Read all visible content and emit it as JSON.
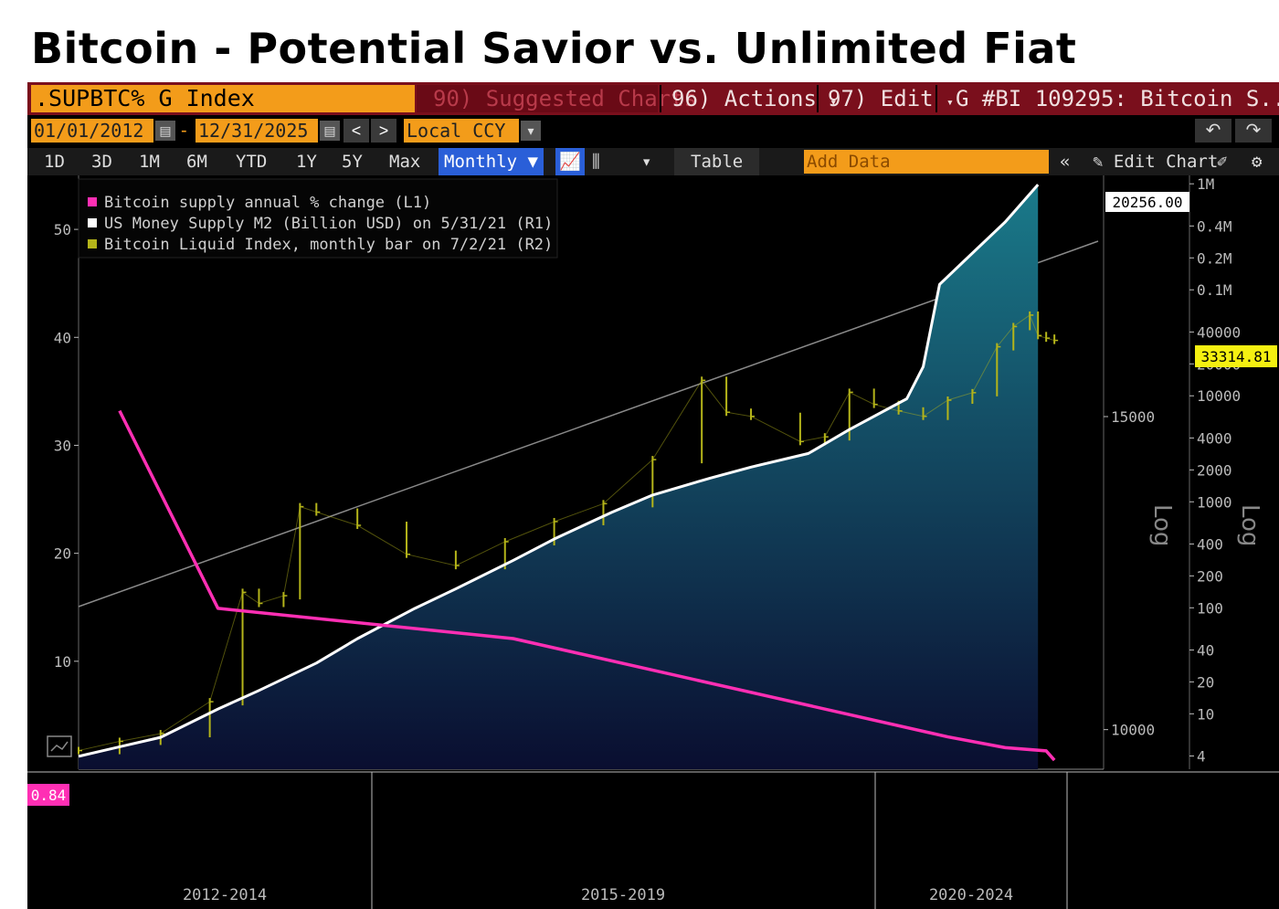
{
  "page": {
    "title": "Bitcoin - Potential Savior vs. Unlimited Fiat"
  },
  "toolbar": {
    "ticker": ".SUPBTC% G Index",
    "suggested": "90) Suggested Charts",
    "actions": "96) Actions",
    "edit": "97) Edit",
    "chart_id": "G #BI 109295: Bitcoin S...",
    "start_date": "01/01/2012",
    "end_date": "12/31/2025",
    "date_sep": "-",
    "prev": "<",
    "next": ">",
    "currency": "Local CCY",
    "undo_icon": "↶",
    "redo_icon": "↷",
    "periods": [
      "1D",
      "3D",
      "1M",
      "6M",
      "YTD",
      "1Y",
      "5Y",
      "Max"
    ],
    "frequency": "Monthly ▼",
    "table": "Table",
    "add_data": "Add Data",
    "collapse": "«",
    "edit_chart": "Edit Chart"
  },
  "colors": {
    "m2": "#ffffff",
    "supply_change": "#ff2fb4",
    "btc": "#b5b51a",
    "background": "#000000",
    "area_top": "#1a7a8a",
    "area_bottom": "#0a0e30",
    "orange": "#f39c1a"
  },
  "chart_data": {
    "type": "line",
    "legend_position": "top-left",
    "legend": [
      "Bitcoin supply annual % change (L1)",
      "US Money Supply M2 (Billion USD)  on 5/31/21 (R1)",
      "Bitcoin Liquid Index, monthly bar on 7/2/21 (R2)"
    ],
    "x_labels": [
      "2012-2014",
      "2015-2019",
      "2020-2024"
    ],
    "left_axis": {
      "ticks": [
        10,
        20,
        30,
        40,
        50
      ],
      "ylim": [
        0,
        55
      ]
    },
    "r1_axis": {
      "scale": "log",
      "ticks": [
        10000,
        15000
      ],
      "ylim": [
        9500,
        20500
      ],
      "label": "Log"
    },
    "r2_axis": {
      "scale": "log",
      "tick_labels": [
        "4",
        "10",
        "20",
        "40",
        "100",
        "200",
        "400",
        "1000",
        "2000",
        "4000",
        "10000",
        "20000",
        "40000",
        "0.1M",
        "0.2M",
        "0.4M",
        "1M"
      ],
      "ylim": [
        3,
        1200000
      ],
      "label": "Log"
    },
    "last_value_tags": {
      "supply_change": "0.84",
      "m2": "20256.00",
      "btc": "33314.81"
    },
    "series": [
      {
        "name": "Bitcoin supply annual % change (L1)",
        "axis": "left",
        "x": [
          "2012-01",
          "2013-01",
          "2016-01",
          "2020-06",
          "2021-01",
          "2021-06",
          "2021-07"
        ],
        "values": [
          33.2,
          14.9,
          12.1,
          3.0,
          2.0,
          1.7,
          0.84
        ]
      },
      {
        "name": "US Money Supply M2 (Billion USD)  on 5/31/21 (R1)",
        "axis": "r1",
        "x": [
          "2011-08",
          "2012-01",
          "2012-06",
          "2013-01",
          "2013-06",
          "2014-01",
          "2014-06",
          "2015-01",
          "2015-06",
          "2016-01",
          "2016-06",
          "2017-01",
          "2017-06",
          "2018-01",
          "2018-06",
          "2019-01",
          "2019-06",
          "2020-01",
          "2020-03",
          "2020-05",
          "2020-08",
          "2021-01",
          "2021-05"
        ],
        "values": [
          9660,
          9780,
          9900,
          10270,
          10520,
          10900,
          11250,
          11700,
          12000,
          12450,
          12800,
          13250,
          13550,
          13850,
          14050,
          14300,
          14750,
          15350,
          16000,
          17800,
          18350,
          19300,
          20256
        ]
      },
      {
        "name": "Bitcoin Liquid Index, monthly bar on 7/2/21 (R2)",
        "axis": "r2",
        "x": [
          "2011-08",
          "2012-01",
          "2012-06",
          "2012-12",
          "2013-04",
          "2013-06",
          "2013-09",
          "2013-11",
          "2014-01",
          "2014-06",
          "2014-12",
          "2015-06",
          "2015-12",
          "2016-06",
          "2016-12",
          "2017-06",
          "2017-12",
          "2018-03",
          "2018-06",
          "2018-12",
          "2019-03",
          "2019-06",
          "2019-09",
          "2019-12",
          "2020-03",
          "2020-06",
          "2020-09",
          "2020-12",
          "2021-02",
          "2021-04",
          "2021-05",
          "2021-06",
          "2021-07"
        ],
        "values": [
          4.5,
          5.5,
          6.5,
          13,
          140,
          110,
          130,
          900,
          800,
          600,
          320,
          250,
          420,
          650,
          960,
          2500,
          14000,
          7000,
          6400,
          3700,
          4100,
          10800,
          8300,
          7200,
          6400,
          9100,
          10700,
          29000,
          45000,
          57700,
          37000,
          35000,
          33314.81
        ]
      }
    ]
  }
}
